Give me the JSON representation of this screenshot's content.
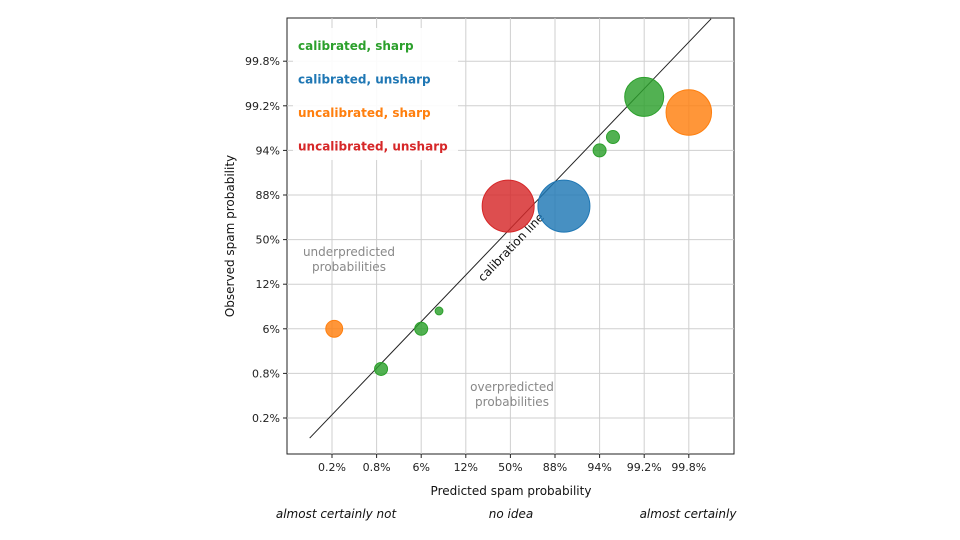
{
  "chart_data": {
    "type": "scatter",
    "title": "",
    "xlabel": "Predicted spam probability",
    "ylabel": "Observed spam probability",
    "tick_labels": [
      "0.2%",
      "0.8%",
      "6%",
      "12%",
      "50%",
      "88%",
      "94%",
      "99.2%",
      "99.8%"
    ],
    "grid": true,
    "line_label": "calibration line",
    "regions": {
      "upper_left": [
        "underpredicted",
        "probabilities"
      ],
      "lower_right": [
        "overpredicted",
        "probabilities"
      ]
    },
    "legend": [
      {
        "label": "calibrated, sharp",
        "color": "#2ca02c"
      },
      {
        "label": "calibrated, unsharp",
        "color": "#1f77b4"
      },
      {
        "label": "uncalibrated, sharp",
        "color": "#ff7f0e"
      },
      {
        "label": "uncalibrated, unsharp",
        "color": "#d62728"
      }
    ],
    "series": [
      {
        "name": "calibrated, sharp",
        "color": "#2ca02c",
        "points": [
          {
            "x": 1.1,
            "y": 1.1,
            "size": 1
          },
          {
            "x": 2.0,
            "y": 2.0,
            "size": 1
          },
          {
            "x": 2.4,
            "y": 2.4,
            "size": 0.6
          },
          {
            "x": 6.0,
            "y": 6.0,
            "size": 1
          },
          {
            "x": 6.3,
            "y": 6.3,
            "size": 1
          },
          {
            "x": 7.0,
            "y": 7.2,
            "size": 3
          }
        ]
      },
      {
        "name": "calibrated, unsharp",
        "color": "#1f77b4",
        "points": [
          {
            "x": 5.2,
            "y": 4.75,
            "size": 4
          }
        ]
      },
      {
        "name": "uncalibrated, sharp",
        "color": "#ff7f0e",
        "points": [
          {
            "x": 0.05,
            "y": 2.0,
            "size": 1.3
          },
          {
            "x": 8.0,
            "y": 6.85,
            "size": 3.5
          }
        ]
      },
      {
        "name": "uncalibrated, unsharp",
        "color": "#d62728",
        "points": [
          {
            "x": 3.95,
            "y": 4.75,
            "size": 4
          }
        ]
      }
    ]
  },
  "footer": {
    "left": "almost certainly not",
    "center": "no idea",
    "right": "almost certainly"
  }
}
